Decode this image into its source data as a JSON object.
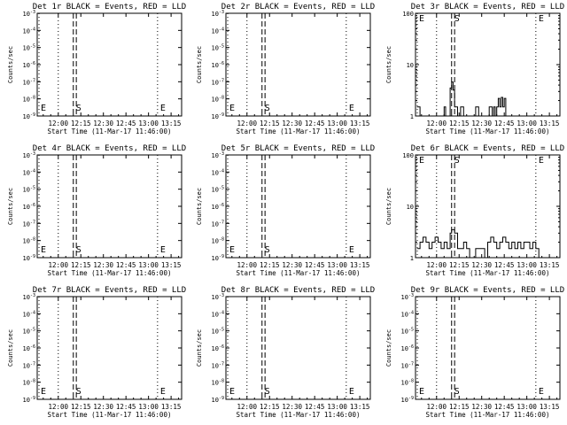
{
  "chart_data": [
    {
      "type": "line",
      "title": "Det 1r BLACK = Events, RED = LLD",
      "xlabel": "Start Time (11-Mar-17 11:46:00)",
      "ylabel": "Counts/sec",
      "scale": "log",
      "ylim": [
        1e-09,
        0.001
      ],
      "yticks": [
        "10^-3",
        "10^-4",
        "10^-5",
        "10^-6",
        "10^-7",
        "10^-8",
        "10^-9"
      ],
      "xlim": [
        "11:46:00",
        "13:22:00"
      ],
      "xticks": [
        "12:00",
        "12:15",
        "12:30",
        "12:45",
        "13:00",
        "13:15"
      ],
      "markers": [
        {
          "label": "E",
          "time": "11:46:00",
          "style": "dotted"
        },
        {
          "label": "",
          "time": "12:00",
          "style": "dotted"
        },
        {
          "label": "S",
          "time": "12:10",
          "style": "dashed"
        },
        {
          "label": "",
          "time": "12:12",
          "style": "dashed"
        },
        {
          "label": "E",
          "time": "13:06",
          "style": "dotted"
        }
      ],
      "series": []
    },
    {
      "type": "line",
      "title": "Det 2r BLACK = Events, RED = LLD",
      "xlabel": "Start Time (11-Mar-17 11:46:00)",
      "ylabel": "Counts/sec",
      "scale": "log",
      "ylim": [
        1e-09,
        0.001
      ],
      "yticks": [
        "10^-3",
        "10^-4",
        "10^-5",
        "10^-6",
        "10^-7",
        "10^-8",
        "10^-9"
      ],
      "xlim": [
        "11:46:00",
        "13:22:00"
      ],
      "xticks": [
        "12:00",
        "12:15",
        "12:30",
        "12:45",
        "13:00",
        "13:15"
      ],
      "markers": [
        {
          "label": "E",
          "time": "11:46:00",
          "style": "dotted"
        },
        {
          "label": "",
          "time": "12:00",
          "style": "dotted"
        },
        {
          "label": "S",
          "time": "12:10",
          "style": "dashed"
        },
        {
          "label": "",
          "time": "12:12",
          "style": "dashed"
        },
        {
          "label": "E",
          "time": "13:06",
          "style": "dotted"
        }
      ],
      "series": []
    },
    {
      "type": "line",
      "title": "Det 3r BLACK = Events, RED = LLD",
      "xlabel": "Start Time (11-Mar-17 11:46:00)",
      "ylabel": "Counts/sec",
      "scale": "log",
      "ylim": [
        1,
        100
      ],
      "yticks": [
        "100",
        "10",
        "1"
      ],
      "xlim": [
        "11:46:00",
        "13:22:00"
      ],
      "xticks": [
        "12:00",
        "12:15",
        "12:30",
        "12:45",
        "13:00",
        "13:15"
      ],
      "markers": [
        {
          "label": "E",
          "time": "11:46:00",
          "style": "dotted"
        },
        {
          "label": "",
          "time": "12:00",
          "style": "dotted"
        },
        {
          "label": "S",
          "time": "12:10",
          "style": "dashed"
        },
        {
          "label": "",
          "time": "12:12",
          "style": "dashed"
        },
        {
          "label": "E",
          "time": "13:06",
          "style": "dotted"
        }
      ],
      "series": [
        {
          "name": "",
          "x": [
            "11:47",
            "11:49",
            "11:51",
            "11:53",
            "11:55",
            "11:57",
            "11:58",
            "12:01",
            "12:03",
            "12:05",
            "12:06",
            "12:08",
            "12:09",
            "12:10",
            "12:11",
            "12:12",
            "12:13",
            "12:14",
            "12:16",
            "12:18",
            "12:20",
            "12:22",
            "12:24",
            "12:26",
            "12:28",
            "12:30",
            "12:31",
            "12:33",
            "12:35",
            "12:37",
            "12:38",
            "12:39",
            "12:40",
            "12:41",
            "12:42",
            "12:43",
            "12:44",
            "12:45",
            "12:46",
            "12:48",
            "12:50",
            "12:52",
            "12:54",
            "12:56",
            "12:58",
            "13:00",
            "13:02",
            "13:04",
            "13:06",
            "13:08",
            "13:10",
            "13:12",
            "13:14",
            "13:16",
            "13:18",
            "13:20"
          ],
          "values": [
            1.5,
            1,
            1,
            1,
            1,
            1,
            1,
            1,
            1,
            1.5,
            1,
            1,
            3.5,
            4.6,
            3.2,
            1.5,
            1.5,
            1,
            1.5,
            1,
            1,
            1,
            1,
            1.5,
            1,
            1,
            1,
            1,
            1.5,
            1,
            1.5,
            1,
            1.5,
            2.2,
            1.5,
            2.3,
            1.5,
            2.2,
            1,
            1,
            1,
            1,
            1,
            1,
            1,
            1,
            1,
            1,
            1,
            1,
            1,
            1,
            1,
            1,
            1,
            1
          ]
        }
      ]
    },
    {
      "type": "line",
      "title": "Det 4r BLACK = Events, RED = LLD",
      "xlabel": "Start Time (11-Mar-17 11:46:00)",
      "ylabel": "Counts/sec",
      "scale": "log",
      "ylim": [
        1e-09,
        0.001
      ],
      "yticks": [
        "10^-3",
        "10^-4",
        "10^-5",
        "10^-6",
        "10^-7",
        "10^-8",
        "10^-9"
      ],
      "xlim": [
        "11:46:00",
        "13:22:00"
      ],
      "xticks": [
        "12:00",
        "12:15",
        "12:30",
        "12:45",
        "13:00",
        "13:15"
      ],
      "markers": [
        {
          "label": "E",
          "time": "11:46:00",
          "style": "dotted"
        },
        {
          "label": "",
          "time": "12:00",
          "style": "dotted"
        },
        {
          "label": "S",
          "time": "12:10",
          "style": "dashed"
        },
        {
          "label": "",
          "time": "12:12",
          "style": "dashed"
        },
        {
          "label": "E",
          "time": "13:06",
          "style": "dotted"
        }
      ],
      "series": []
    },
    {
      "type": "line",
      "title": "Det 5r BLACK = Events, RED = LLD",
      "xlabel": "Start Time (11-Mar-17 11:46:00)",
      "ylabel": "Counts/sec",
      "scale": "log",
      "ylim": [
        1e-09,
        0.001
      ],
      "yticks": [
        "10^-3",
        "10^-4",
        "10^-5",
        "10^-6",
        "10^-7",
        "10^-8",
        "10^-9"
      ],
      "xlim": [
        "11:46:00",
        "13:22:00"
      ],
      "xticks": [
        "12:00",
        "12:15",
        "12:30",
        "12:45",
        "13:00",
        "13:15"
      ],
      "markers": [
        {
          "label": "E",
          "time": "11:46:00",
          "style": "dotted"
        },
        {
          "label": "",
          "time": "12:00",
          "style": "dotted"
        },
        {
          "label": "S",
          "time": "12:10",
          "style": "dashed"
        },
        {
          "label": "",
          "time": "12:12",
          "style": "dashed"
        },
        {
          "label": "E",
          "time": "13:06",
          "style": "dotted"
        }
      ],
      "series": []
    },
    {
      "type": "line",
      "title": "Det 6r BLACK = Events, RED = LLD",
      "xlabel": "Start Time (11-Mar-17 11:46:00)",
      "ylabel": "Counts/sec",
      "scale": "log",
      "ylim": [
        1,
        100
      ],
      "yticks": [
        "100",
        "10",
        "1"
      ],
      "xlim": [
        "11:46:00",
        "13:22:00"
      ],
      "xticks": [
        "12:00",
        "12:15",
        "12:30",
        "12:45",
        "13:00",
        "13:15"
      ],
      "markers": [
        {
          "label": "E",
          "time": "11:46:00",
          "style": "dotted"
        },
        {
          "label": "",
          "time": "12:00",
          "style": "dotted"
        },
        {
          "label": "S",
          "time": "12:10",
          "style": "dashed"
        },
        {
          "label": "",
          "time": "12:12",
          "style": "dashed"
        },
        {
          "label": "E",
          "time": "13:06",
          "style": "dotted"
        }
      ],
      "series": [
        {
          "name": "",
          "x": [
            "11:47",
            "11:49",
            "11:51",
            "11:53",
            "11:55",
            "11:57",
            "11:59",
            "12:01",
            "12:03",
            "12:05",
            "12:07",
            "12:09",
            "12:10",
            "12:11",
            "12:12",
            "12:14",
            "12:16",
            "12:18",
            "12:20",
            "12:22",
            "12:24",
            "12:26",
            "12:28",
            "12:30",
            "12:32",
            "12:34",
            "12:36",
            "12:38",
            "12:40",
            "12:42",
            "12:44",
            "12:46",
            "12:48",
            "12:50",
            "12:52",
            "12:54",
            "12:56",
            "12:58",
            "13:00",
            "13:02",
            "13:04",
            "13:06",
            "13:08",
            "13:10",
            "13:12",
            "13:14",
            "13:16",
            "13:18",
            "13:20"
          ],
          "values": [
            1.5,
            2,
            2.5,
            2,
            1.5,
            2,
            2.5,
            2,
            1.5,
            2,
            1.5,
            3,
            3.5,
            3.5,
            3,
            1.5,
            1.5,
            2,
            1.5,
            1,
            1,
            1.5,
            1.5,
            1.5,
            1,
            2,
            2.5,
            2,
            1.5,
            2,
            2.5,
            2,
            1.5,
            2,
            1.5,
            2,
            1.5,
            2,
            2,
            1.5,
            2,
            1.5,
            1,
            1,
            1,
            1,
            1,
            1,
            1
          ]
        }
      ]
    },
    {
      "type": "line",
      "title": "Det 7r BLACK = Events, RED = LLD",
      "xlabel": "Start Time (11-Mar-17 11:46:00)",
      "ylabel": "Counts/sec",
      "scale": "log",
      "ylim": [
        1e-09,
        0.001
      ],
      "yticks": [
        "10^-3",
        "10^-4",
        "10^-5",
        "10^-6",
        "10^-7",
        "10^-8",
        "10^-9"
      ],
      "xlim": [
        "11:46:00",
        "13:22:00"
      ],
      "xticks": [
        "12:00",
        "12:15",
        "12:30",
        "12:45",
        "13:00",
        "13:15"
      ],
      "markers": [
        {
          "label": "E",
          "time": "11:46:00",
          "style": "dotted"
        },
        {
          "label": "",
          "time": "12:00",
          "style": "dotted"
        },
        {
          "label": "S",
          "time": "12:10",
          "style": "dashed"
        },
        {
          "label": "",
          "time": "12:12",
          "style": "dashed"
        },
        {
          "label": "E",
          "time": "13:06",
          "style": "dotted"
        }
      ],
      "series": []
    },
    {
      "type": "line",
      "title": "Det 8r BLACK = Events, RED = LLD",
      "xlabel": "Start Time (11-Mar-17 11:46:00)",
      "ylabel": "Counts/sec",
      "scale": "log",
      "ylim": [
        1e-09,
        0.001
      ],
      "yticks": [
        "10^-3",
        "10^-4",
        "10^-5",
        "10^-6",
        "10^-7",
        "10^-8",
        "10^-9"
      ],
      "xlim": [
        "11:46:00",
        "13:22:00"
      ],
      "xticks": [
        "12:00",
        "12:15",
        "12:30",
        "12:45",
        "13:00",
        "13:15"
      ],
      "markers": [
        {
          "label": "E",
          "time": "11:46:00",
          "style": "dotted"
        },
        {
          "label": "",
          "time": "12:00",
          "style": "dotted"
        },
        {
          "label": "S",
          "time": "12:10",
          "style": "dashed"
        },
        {
          "label": "",
          "time": "12:12",
          "style": "dashed"
        },
        {
          "label": "E",
          "time": "13:06",
          "style": "dotted"
        }
      ],
      "series": []
    },
    {
      "type": "line",
      "title": "Det 9r BLACK = Events, RED = LLD",
      "xlabel": "Start Time (11-Mar-17 11:46:00)",
      "ylabel": "Counts/sec",
      "scale": "log",
      "ylim": [
        1e-09,
        0.001
      ],
      "yticks": [
        "10^-3",
        "10^-4",
        "10^-5",
        "10^-6",
        "10^-7",
        "10^-8",
        "10^-9"
      ],
      "xlim": [
        "11:46:00",
        "13:22:00"
      ],
      "xticks": [
        "12:00",
        "12:15",
        "12:30",
        "12:45",
        "13:00",
        "13:15"
      ],
      "markers": [
        {
          "label": "E",
          "time": "11:46:00",
          "style": "dotted"
        },
        {
          "label": "",
          "time": "12:00",
          "style": "dotted"
        },
        {
          "label": "S",
          "time": "12:10",
          "style": "dashed"
        },
        {
          "label": "",
          "time": "12:12",
          "style": "dashed"
        },
        {
          "label": "E",
          "time": "13:06",
          "style": "dotted"
        }
      ],
      "series": []
    }
  ]
}
